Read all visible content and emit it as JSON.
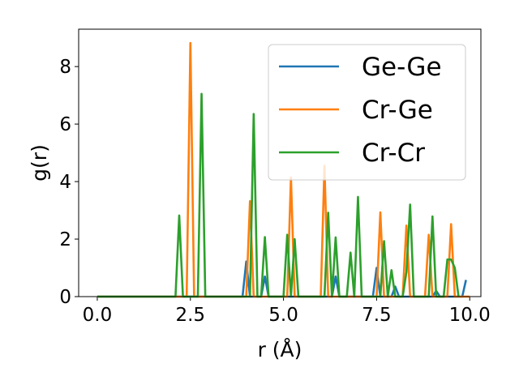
{
  "chart_data": {
    "type": "line",
    "title": "",
    "xlabel": "r (Å)",
    "ylabel": "g(r)",
    "xlim": [
      -0.5,
      10.3
    ],
    "ylim": [
      0,
      9.3
    ],
    "xticks": [
      "0.0",
      "2.5",
      "5.0",
      "7.5",
      "10.0"
    ],
    "xtick_values": [
      0,
      2.5,
      5.0,
      7.5,
      10.0
    ],
    "yticks": [
      "0",
      "2",
      "4",
      "6",
      "8"
    ],
    "ytick_values": [
      0,
      2,
      4,
      6,
      8
    ],
    "grid": false,
    "legend_position": "top-right",
    "series": [
      {
        "name": "Ge-Ge",
        "color": "#1f77b4",
        "x": [
          0.0,
          3.9,
          4.0,
          4.1,
          4.4,
          4.5,
          4.6,
          6.3,
          6.4,
          6.5,
          7.4,
          7.5,
          7.6,
          7.9,
          8.0,
          8.1,
          9.0,
          9.1,
          9.2,
          9.8,
          9.9
        ],
        "y": [
          0.0,
          0.0,
          1.22,
          0.0,
          0.0,
          0.7,
          0.0,
          0.0,
          0.7,
          0.0,
          0.0,
          1.0,
          0.0,
          0.0,
          0.35,
          0.0,
          0.0,
          0.2,
          0.0,
          0.0,
          0.58
        ]
      },
      {
        "name": "Cr-Ge",
        "color": "#ff7f0e",
        "x": [
          0.0,
          2.4,
          2.5,
          2.6,
          4.0,
          4.1,
          4.2,
          5.1,
          5.2,
          5.3,
          6.0,
          6.1,
          6.2,
          7.5,
          7.6,
          7.7,
          8.2,
          8.3,
          8.4,
          8.8,
          8.9,
          9.0,
          9.4,
          9.5,
          9.6,
          10.0
        ],
        "y": [
          0.0,
          0.0,
          8.82,
          0.0,
          0.0,
          3.32,
          0.0,
          0.0,
          4.15,
          0.0,
          0.0,
          4.55,
          0.0,
          0.0,
          2.93,
          0.0,
          0.0,
          2.47,
          0.0,
          0.0,
          2.15,
          0.0,
          0.0,
          2.52,
          0.0,
          0.0
        ]
      },
      {
        "name": "Cr-Cr",
        "color": "#2ca02c",
        "x": [
          0.0,
          2.1,
          2.2,
          2.3,
          2.7,
          2.8,
          2.9,
          4.1,
          4.2,
          4.3,
          4.4,
          4.5,
          4.6,
          5.0,
          5.1,
          5.2,
          5.3,
          5.4,
          6.1,
          6.2,
          6.3,
          6.4,
          6.5,
          6.7,
          6.8,
          6.9,
          7.0,
          7.1,
          7.6,
          7.7,
          7.8,
          7.9,
          8.0,
          8.2,
          8.3,
          8.4,
          8.5,
          8.9,
          9.0,
          9.1,
          9.3,
          9.4,
          9.5,
          9.6,
          9.7
        ],
        "y": [
          0.0,
          0.0,
          2.82,
          0.0,
          0.0,
          7.05,
          0.0,
          0.0,
          6.35,
          0.0,
          0.0,
          2.07,
          0.0,
          0.0,
          2.15,
          0.0,
          2.0,
          0.0,
          0.0,
          2.92,
          0.0,
          2.06,
          0.0,
          0.0,
          1.53,
          0.0,
          3.47,
          0.0,
          0.0,
          1.93,
          0.0,
          0.92,
          0.0,
          0.0,
          0.85,
          3.2,
          0.0,
          0.0,
          2.79,
          0.0,
          0.0,
          1.29,
          1.29,
          1.0,
          0.0
        ]
      }
    ]
  }
}
